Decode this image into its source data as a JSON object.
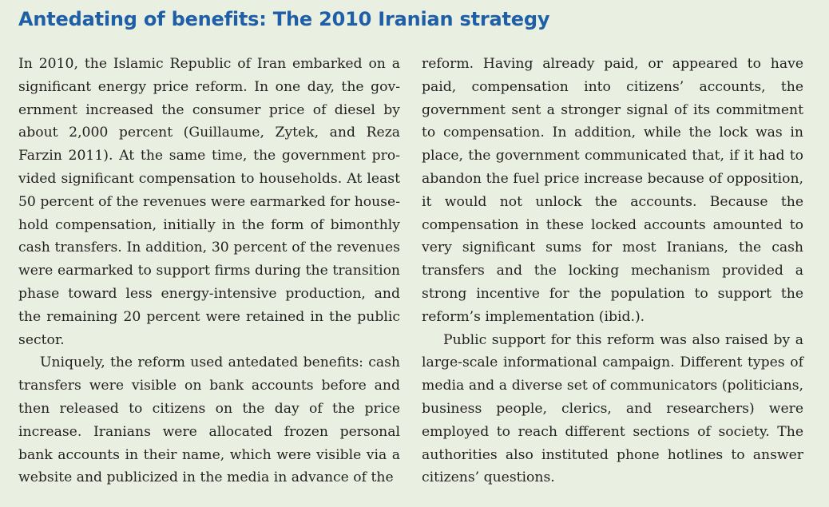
{
  "box": {
    "title": "Antedating of benefits: The 2010 Iranian strategy",
    "left_column": {
      "p1": "In 2010, the Islamic Republic of Iran embarked on a significant energy price reform. In one day, the gov­ernment increased the consumer price of diesel by about 2,000 percent (Guillaume, Zytek, and Reza Farzin 2011). At the same time, the government pro­vided significant compensation to households. At least 50 percent of the revenues were earmarked for house­hold compensation, initially in the form of bimonthly cash transfers. In addition, 30 percent of the revenues were earmarked to support firms during the transi­tion phase toward less energy-intensive production, and the remaining 20 percent were retained in the public sector.",
      "p2": "Uniquely, the reform used antedated benefits: cash transfers were visible on bank accounts before and then released to citizens on the day of the price increase. Iranians were allocated frozen personal bank accounts in their name, which were visible via a website and publicized in the media in advance of the"
    },
    "right_column": {
      "p1": "reform. Having already paid, or appeared to have paid, compensation into citizens’ accounts, the government sent a stronger signal of its commitment to compensa­tion. In addition, while the lock was in place, the gov­ernment communicated that, if it had to abandon the fuel price increase because of opposition, it would not unlock the accounts. Because the compensation in these locked accounts amounted to very significant sums for most Iranians, the cash transfers and the locking mechanism provided a strong incentive for the population to support the reform’s implementation (ibid.).",
      "p2": "Public support for this reform was also raised by a large-scale informational campaign. Different types of media and a diverse set of communicators (politicians, business people, clerics, and researchers) were employed to reach different sections of society. The authorities also instituted phone hotlines to answer citizens’ questions."
    },
    "colors": {
      "background": "#eaf0e1",
      "title": "#1f5fa8",
      "text": "#231f20"
    }
  }
}
